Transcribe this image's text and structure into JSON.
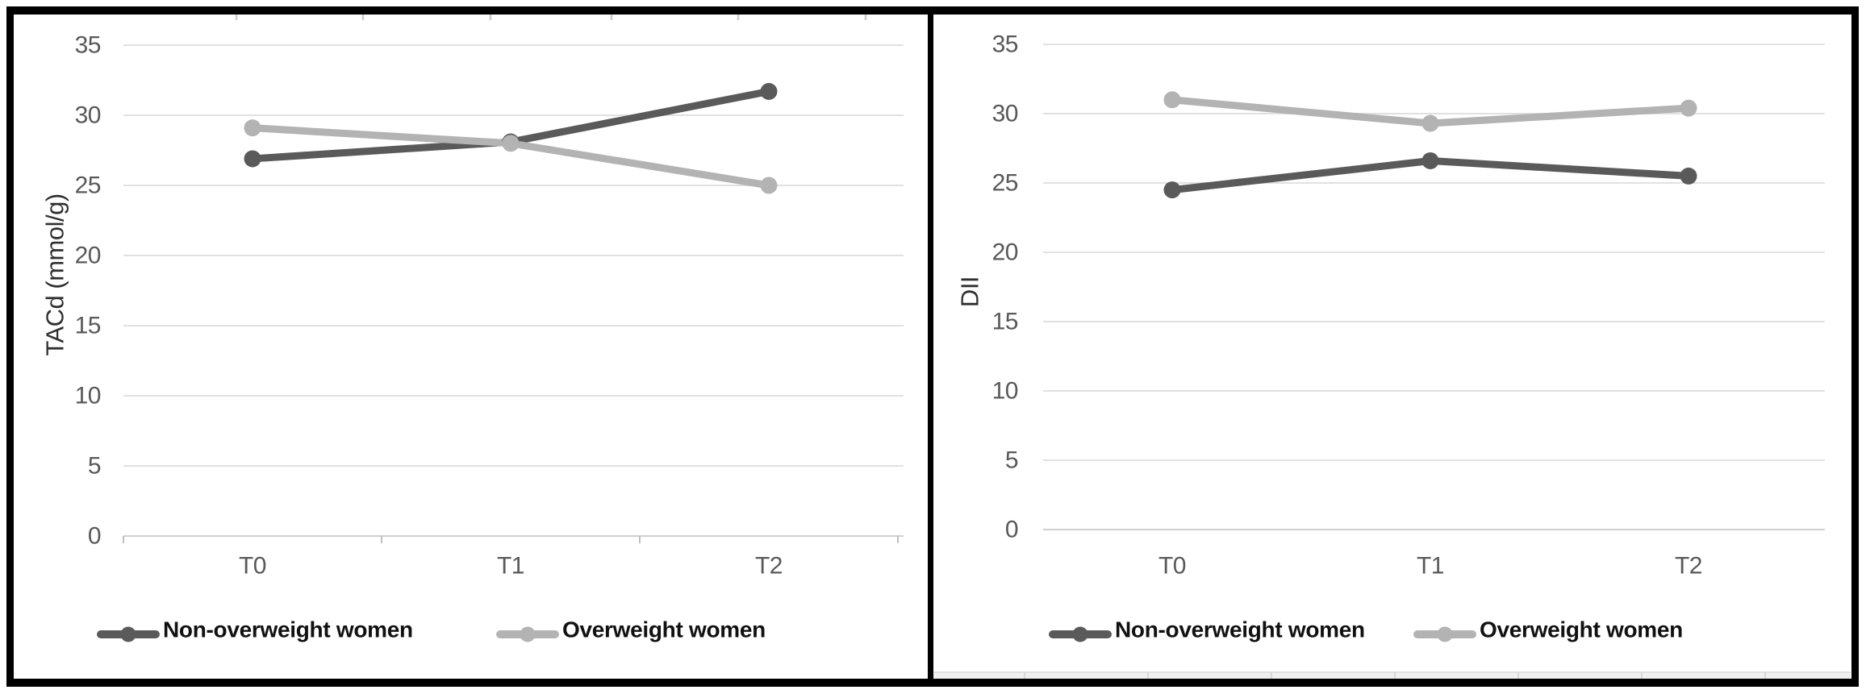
{
  "figure": {
    "panel_count": 2,
    "x_axis_categories": [
      "T0",
      "T1",
      "T2"
    ]
  },
  "chart_data": [
    {
      "type": "line",
      "title": "",
      "xlabel": "",
      "ylabel": "TACd (mmol/g)",
      "categories": [
        "T0",
        "T1",
        "T2"
      ],
      "yticks": [
        0,
        5,
        10,
        15,
        20,
        25,
        30,
        35
      ],
      "ylim": [
        0,
        35
      ],
      "grid": true,
      "legend_position": "bottom",
      "marker": "circle",
      "series": [
        {
          "name": "Non-overweight women",
          "color": "#5a5a5a",
          "values": [
            26.9,
            28.1,
            31.7
          ]
        },
        {
          "name": "Overweight women",
          "color": "#b3b3b3",
          "values": [
            29.1,
            28.0,
            25.0
          ]
        }
      ]
    },
    {
      "type": "line",
      "title": "",
      "xlabel": "",
      "ylabel": "DII",
      "categories": [
        "T0",
        "T1",
        "T2"
      ],
      "yticks": [
        0,
        5,
        10,
        15,
        20,
        25,
        30,
        35
      ],
      "ylim": [
        0,
        35
      ],
      "grid": true,
      "legend_position": "bottom",
      "marker": "circle",
      "series": [
        {
          "name": "Non-overweight women",
          "color": "#5a5a5a",
          "values": [
            24.5,
            26.6,
            25.5
          ]
        },
        {
          "name": "Overweight women",
          "color": "#b3b3b3",
          "values": [
            31.0,
            29.3,
            30.4
          ]
        }
      ]
    }
  ]
}
